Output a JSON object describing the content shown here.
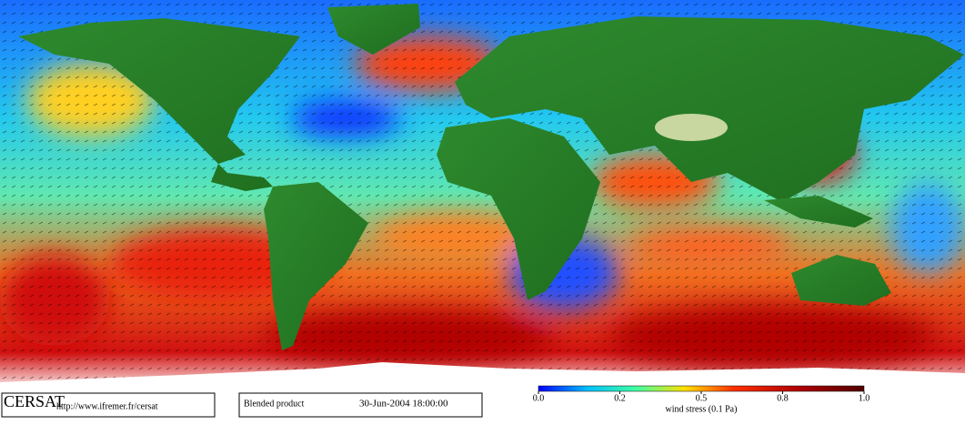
{
  "header": {
    "logo": "CERSAT",
    "url": "http://www.ifremer.fr/cersat",
    "product": "Blended product",
    "date": "30-Jun-2004 18:00:00"
  },
  "colorbar": {
    "label": "wind stress (0.1 Pa)",
    "ticks": [
      {
        "value": 0,
        "label": "0.0"
      },
      0.2,
      0.5,
      0.8,
      {
        "value": 1,
        "label": "1.0"
      }
    ]
  }
}
